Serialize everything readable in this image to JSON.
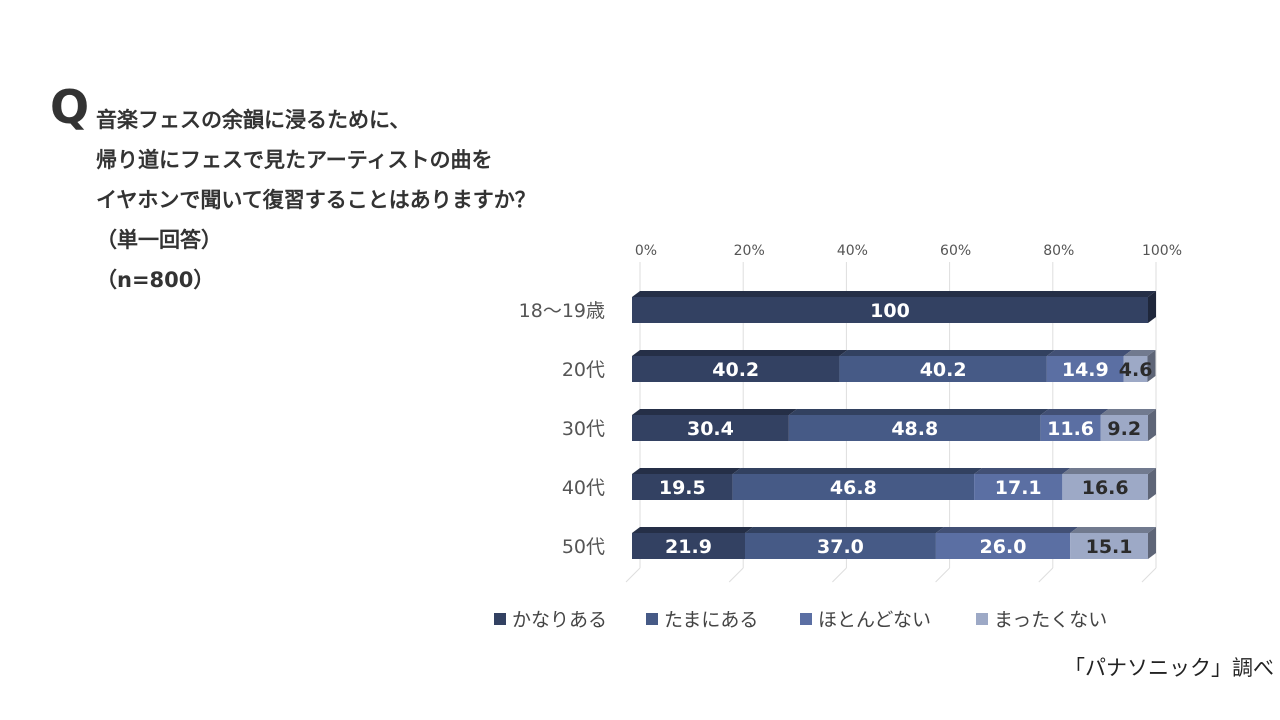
{
  "question": {
    "mark": "Q",
    "lines": [
      "音楽フェスの余韻に浸るために、",
      "帰り道にフェスで見たアーティストの曲を",
      "イヤホンで聞いて復習することはありますか？",
      "（単一回答）",
      "（n=800）"
    ]
  },
  "source": "「パナソニック」調べ",
  "chart_data": {
    "type": "bar",
    "orientation": "horizontal",
    "stacked": true,
    "unit": "%",
    "categories": [
      "18〜19歳",
      "20代",
      "30代",
      "40代",
      "50代"
    ],
    "series": [
      {
        "name": "かなりある",
        "values": [
          100,
          40.2,
          30.4,
          19.5,
          21.9
        ],
        "color": "#334162"
      },
      {
        "name": "たまにある",
        "values": [
          0,
          40.2,
          48.8,
          46.8,
          37.0
        ],
        "color": "#465a86"
      },
      {
        "name": "ほとんどない",
        "values": [
          0,
          14.9,
          11.6,
          17.1,
          26.0
        ],
        "color": "#5b6fa3"
      },
      {
        "name": "まったくない",
        "values": [
          0,
          4.6,
          9.2,
          16.6,
          15.1
        ],
        "color": "#9da9c6"
      }
    ],
    "labels": [
      [
        "100",
        "",
        "",
        ""
      ],
      [
        "40.2",
        "40.2",
        "14.9",
        "4.6"
      ],
      [
        "30.4",
        "48.8",
        "11.6",
        "9.2"
      ],
      [
        "19.5",
        "46.8",
        "17.1",
        "16.6"
      ],
      [
        "21.9",
        "37.0",
        "26.0",
        "15.1"
      ]
    ],
    "xticks": [
      "0%",
      "20%",
      "40%",
      "60%",
      "80%",
      "100%"
    ],
    "xlim": [
      0,
      100
    ],
    "grid": true,
    "legend_position": "bottom"
  }
}
